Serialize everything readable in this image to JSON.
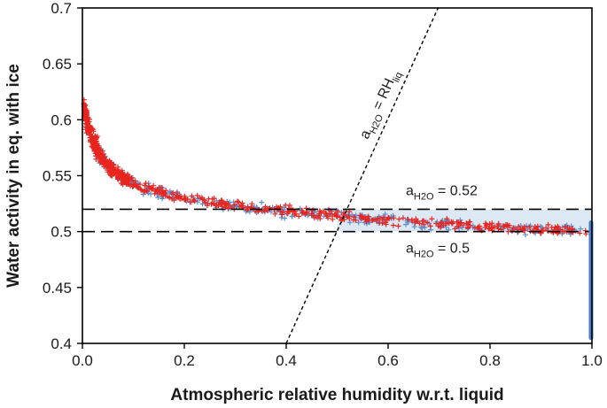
{
  "chart_data": {
    "type": "scatter",
    "xlabel": "Atmospheric relative humidity w.r.t. liquid",
    "ylabel": "Water activity in eq. with ice",
    "xlim": [
      0.0,
      1.0
    ],
    "ylim": [
      0.4,
      0.7
    ],
    "x_ticks": [
      "0.0",
      "0.2",
      "0.4",
      "0.6",
      "0.8",
      "1.0"
    ],
    "x_tick_values": [
      0.0,
      0.2,
      0.4,
      0.6,
      0.8,
      1.0
    ],
    "y_ticks": [
      "0.4",
      "0.45",
      "0.5",
      "0.55",
      "0.6",
      "0.65",
      "0.7"
    ],
    "y_tick_values": [
      0.4,
      0.45,
      0.5,
      0.55,
      0.6,
      0.65,
      0.7
    ],
    "grid": false,
    "colors": {
      "red_series": "#e8251f",
      "blue_series": "#5b8fd0",
      "band_fill": "#dce9f5",
      "bar": "#4a7fc8",
      "lines": "#000000"
    },
    "band": {
      "y_low": 0.5,
      "y_high": 0.52,
      "x_start": 0.5,
      "x_end": 1.0
    },
    "bar_at_x1": {
      "x": 1.0,
      "y_low": 0.405,
      "y_high": 0.508
    },
    "reference_lines": [
      {
        "label": "a_H2O = 0.52",
        "y": 0.52,
        "style": "dashed"
      },
      {
        "label": "a_H2O = 0.5",
        "y": 0.5,
        "style": "dashed"
      }
    ],
    "diagonal_line": {
      "label": "a_H2O = RH_liq",
      "x_start": 0.4,
      "x_end": 0.698,
      "style": "dotted"
    },
    "curve_points": [
      [
        0.003,
        0.612
      ],
      [
        0.006,
        0.603
      ],
      [
        0.01,
        0.596
      ],
      [
        0.015,
        0.588
      ],
      [
        0.02,
        0.582
      ],
      [
        0.03,
        0.572
      ],
      [
        0.04,
        0.565
      ],
      [
        0.05,
        0.559
      ],
      [
        0.06,
        0.555
      ],
      [
        0.07,
        0.551
      ],
      [
        0.08,
        0.548
      ],
      [
        0.1,
        0.543
      ],
      [
        0.12,
        0.539
      ],
      [
        0.15,
        0.535
      ],
      [
        0.2,
        0.53
      ],
      [
        0.25,
        0.526
      ],
      [
        0.3,
        0.523
      ],
      [
        0.4,
        0.518
      ],
      [
        0.5,
        0.514
      ],
      [
        0.6,
        0.51
      ],
      [
        0.7,
        0.507
      ],
      [
        0.8,
        0.504
      ],
      [
        0.9,
        0.502
      ],
      [
        1.0,
        0.5
      ]
    ]
  },
  "annotations": {
    "upper_a": "a",
    "upper_sub": "H2O",
    "upper_rest": " = 0.52",
    "lower_a": "a",
    "lower_sub": "H2O",
    "lower_rest": " = 0.5",
    "diag_a": "a",
    "diag_sub": "H2O",
    "diag_mid": " = RH",
    "diag_sub2": "liq"
  }
}
